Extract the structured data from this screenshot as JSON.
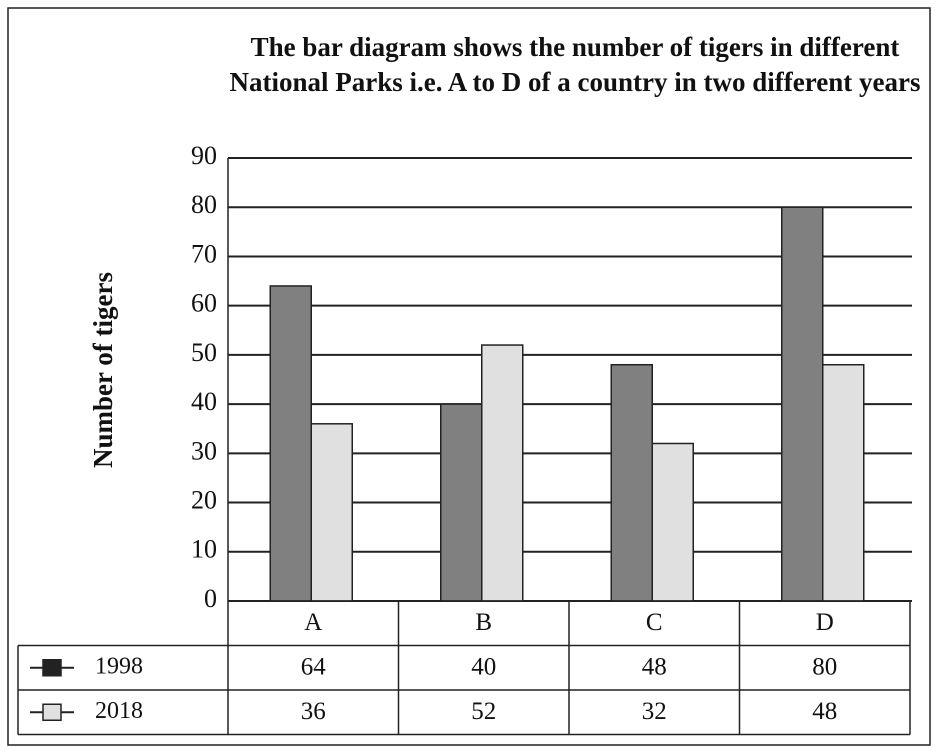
{
  "chart_data": {
    "type": "bar",
    "title": "The bar diagram shows the number of tigers in different National Parks i.e. A to D of a country in two different years",
    "y_label": "Number of tigers",
    "categories": [
      "A",
      "B",
      "C",
      "D"
    ],
    "series": [
      {
        "name": "1998",
        "color": "#808080",
        "values": [
          64,
          40,
          48,
          80
        ]
      },
      {
        "name": "2018",
        "color": "#e0e0e0",
        "values": [
          36,
          52,
          32,
          48
        ]
      }
    ],
    "ylim": [
      0,
      90
    ],
    "yticks": [
      0,
      10,
      20,
      30,
      40,
      50,
      60,
      70,
      80,
      90
    ],
    "grid": true
  }
}
